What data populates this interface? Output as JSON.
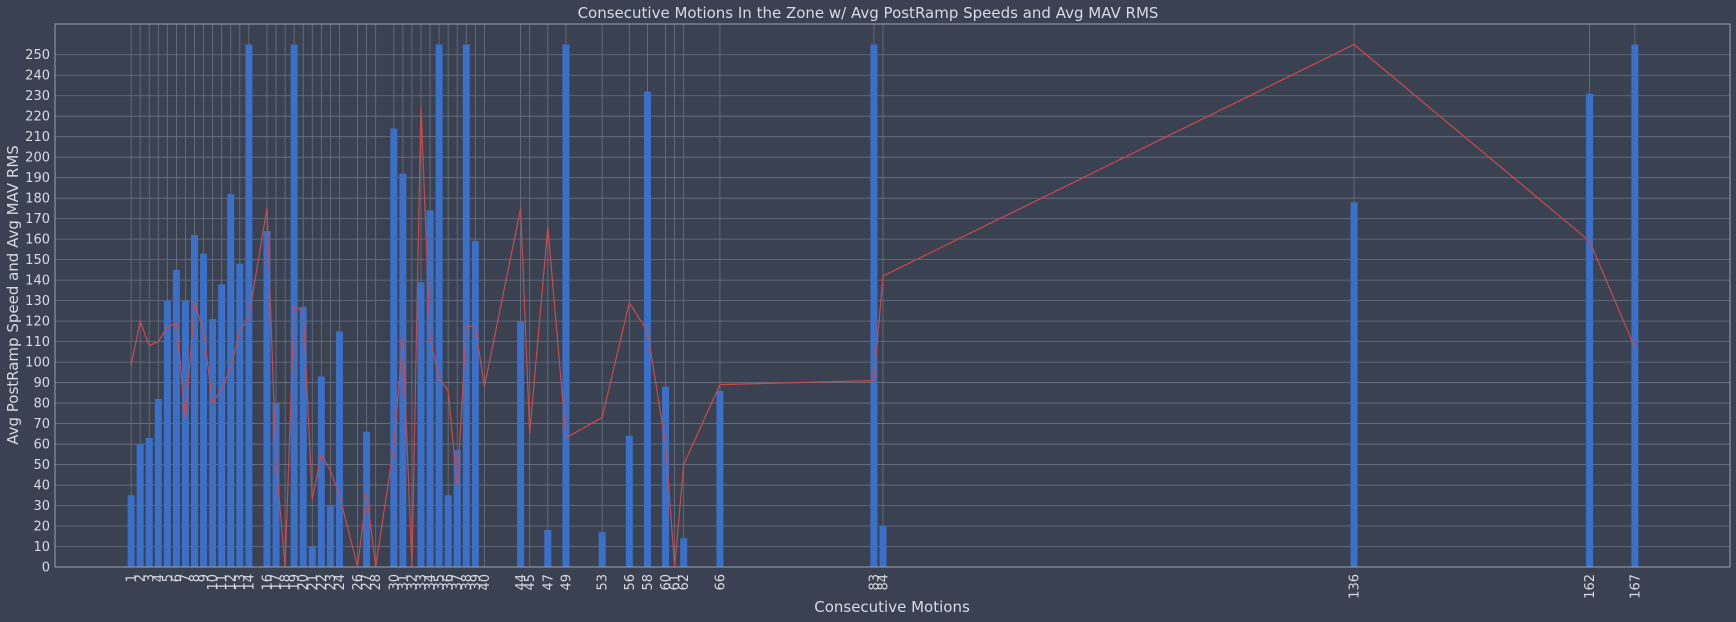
{
  "chart_data": {
    "type": "bar",
    "title": "Consecutive Motions In the Zone w/ Avg PostRamp Speeds and Avg MAV RMS",
    "xlabel": "Consecutive Motions",
    "ylabel": "Avg PostRamp Speed and Avg MAV RMS",
    "ylim": [
      0,
      265
    ],
    "yticks": [
      0,
      10,
      20,
      30,
      40,
      50,
      60,
      70,
      80,
      90,
      100,
      110,
      120,
      130,
      140,
      150,
      160,
      170,
      180,
      190,
      200,
      210,
      220,
      230,
      240,
      250
    ],
    "grid": true,
    "series": [
      {
        "type": "bar",
        "x": [
          1,
          2,
          3,
          4,
          5,
          6,
          7,
          8,
          9,
          10,
          11,
          12,
          13,
          14,
          16,
          17,
          18,
          19,
          20,
          21,
          22,
          23,
          24,
          26,
          27,
          28,
          30,
          31,
          32,
          33,
          34,
          35,
          36,
          37,
          38,
          39,
          40,
          44,
          45,
          47,
          49,
          53,
          56,
          58,
          60,
          61,
          62,
          66,
          83,
          84,
          136,
          162,
          167
        ],
        "values": [
          35,
          60,
          63,
          82,
          130,
          145,
          130,
          162,
          153,
          121,
          138,
          182,
          148,
          255,
          164,
          80,
          0,
          255,
          127,
          10,
          93,
          30,
          115,
          0,
          66,
          0,
          214,
          192,
          0,
          139,
          174,
          255,
          35,
          57,
          255,
          159,
          0,
          120,
          0,
          18,
          255,
          17,
          64,
          232,
          88,
          0,
          14,
          86,
          255,
          20,
          178,
          231,
          255
        ]
      },
      {
        "type": "line",
        "x": [
          1,
          2,
          3,
          4,
          5,
          6,
          7,
          8,
          9,
          10,
          11,
          12,
          13,
          14,
          16,
          17,
          18,
          19,
          20,
          21,
          22,
          23,
          24,
          26,
          27,
          28,
          30,
          31,
          32,
          33,
          34,
          35,
          36,
          37,
          38,
          39,
          40,
          44,
          45,
          47,
          49,
          53,
          56,
          58,
          60,
          61,
          62,
          66,
          83,
          84,
          136,
          162,
          167
        ],
        "values": [
          98,
          120,
          108,
          110,
          117,
          119,
          72,
          129,
          115,
          80,
          87,
          97,
          115,
          122,
          175,
          51,
          0,
          127,
          125,
          33,
          55,
          47,
          35,
          0,
          36,
          0,
          59,
          112,
          0,
          225,
          112,
          92,
          86,
          39,
          118,
          117,
          88,
          175,
          65,
          166,
          63,
          73,
          129,
          115,
          60,
          0,
          50,
          89,
          91,
          142,
          255,
          159,
          107
        ]
      }
    ]
  }
}
